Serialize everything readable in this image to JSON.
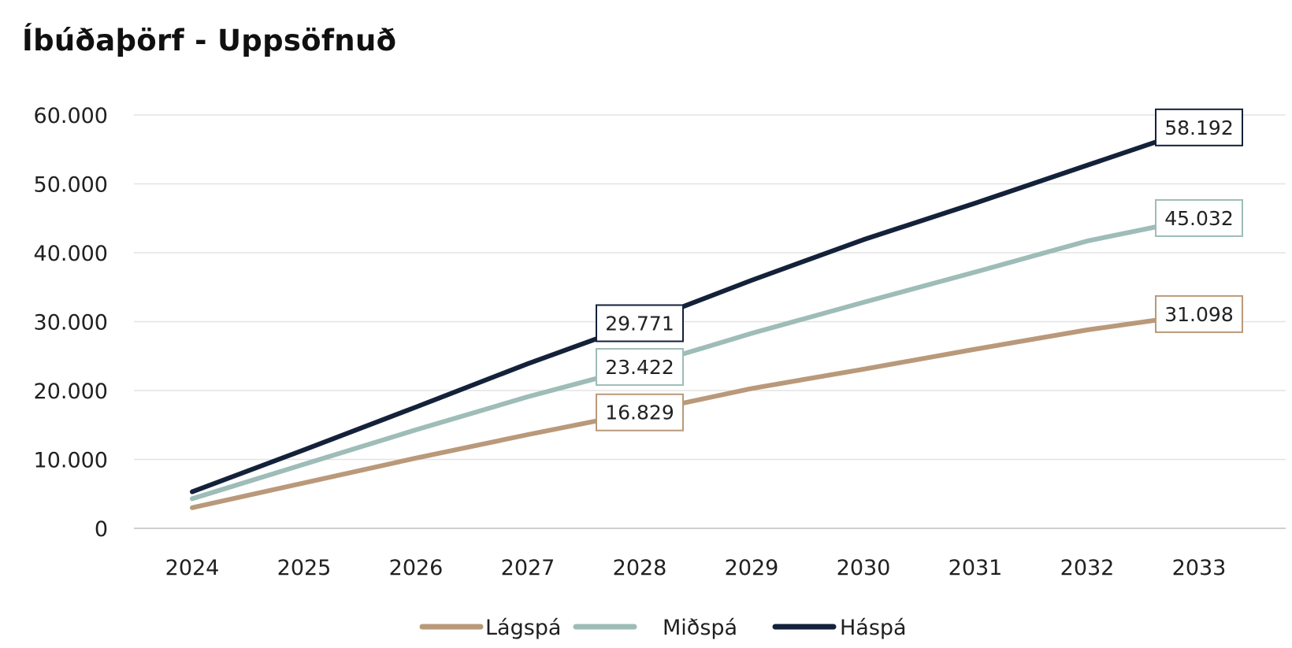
{
  "chart_data": {
    "type": "line",
    "title": "Íbúðaþörf - Uppsöfnuð",
    "xlabel": "",
    "ylabel": "",
    "x": [
      "2024",
      "2025",
      "2026",
      "2027",
      "2028",
      "2029",
      "2030",
      "2031",
      "2032",
      "2033"
    ],
    "ylim": [
      0,
      60000
    ],
    "yticks": [
      0,
      10000,
      20000,
      30000,
      40000,
      50000,
      60000
    ],
    "ytick_labels": [
      "0",
      "10.000",
      "20.000",
      "30.000",
      "40.000",
      "50.000",
      "60.000"
    ],
    "grid": true,
    "legend_position": "bottom",
    "series": [
      {
        "name": "Lágspá",
        "color": "#b9997a",
        "values": [
          3000,
          6600,
          10200,
          13600,
          16829,
          20300,
          23100,
          26000,
          28800,
          31098
        ]
      },
      {
        "name": "Miðspá",
        "color": "#9ebcb8",
        "values": [
          4300,
          9300,
          14300,
          19100,
          23422,
          28300,
          32800,
          37200,
          41700,
          45032
        ]
      },
      {
        "name": "Háspá",
        "color": "#14213a",
        "values": [
          5300,
          11400,
          17600,
          23900,
          29771,
          36000,
          41900,
          47200,
          52700,
          58192
        ]
      }
    ],
    "annotations": [
      {
        "series": "Háspá",
        "x": "2028",
        "value": 29771,
        "text": "29.771"
      },
      {
        "series": "Miðspá",
        "x": "2028",
        "value": 23422,
        "text": "23.422"
      },
      {
        "series": "Lágspá",
        "x": "2028",
        "value": 16829,
        "text": "16.829"
      },
      {
        "series": "Háspá",
        "x": "2033",
        "value": 58192,
        "text": "58.192"
      },
      {
        "series": "Miðspá",
        "x": "2033",
        "value": 45032,
        "text": "45.032"
      },
      {
        "series": "Lágspá",
        "x": "2033",
        "value": 31098,
        "text": "31.098"
      }
    ]
  }
}
